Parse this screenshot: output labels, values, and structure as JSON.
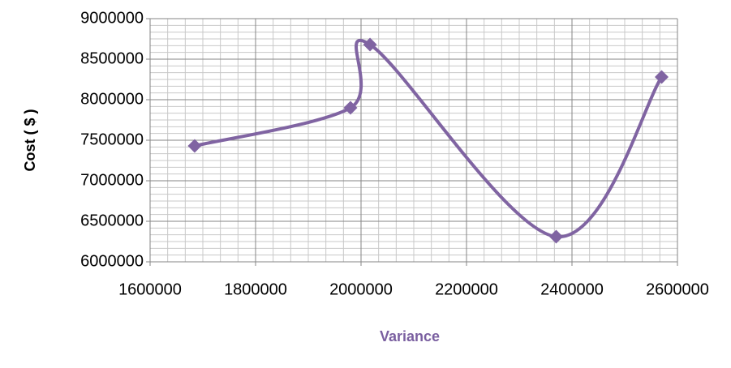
{
  "chart_data": {
    "type": "scatter_smooth",
    "x_label": "Variance",
    "y_label": "Cost ( $ )",
    "x": [
      1684500,
      1980000,
      2017000,
      2370000,
      2570000
    ],
    "values": [
      7430000,
      7900000,
      8680000,
      6310000,
      8280000
    ],
    "color": "#8064a2",
    "xlim": [
      1600000,
      2600000
    ],
    "xticks": [
      1600000,
      1800000,
      2000000,
      2200000,
      2400000,
      2600000
    ],
    "ylim": [
      6000000,
      9000000
    ],
    "yticks": [
      6000000,
      6500000,
      7000000,
      7500000,
      8000000,
      8500000,
      9000000
    ],
    "grid": true,
    "minor_grid": true
  }
}
